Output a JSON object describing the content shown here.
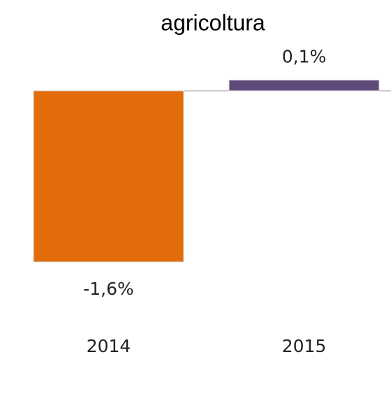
{
  "chart_data": {
    "type": "bar",
    "title": "agricoltura",
    "categories": [
      "2014",
      "2015"
    ],
    "values": [
      -1.6,
      0.1
    ],
    "value_labels": [
      "-1,6%",
      "0,1%"
    ],
    "colors": [
      "#e36c0a",
      "#604a7b"
    ]
  }
}
